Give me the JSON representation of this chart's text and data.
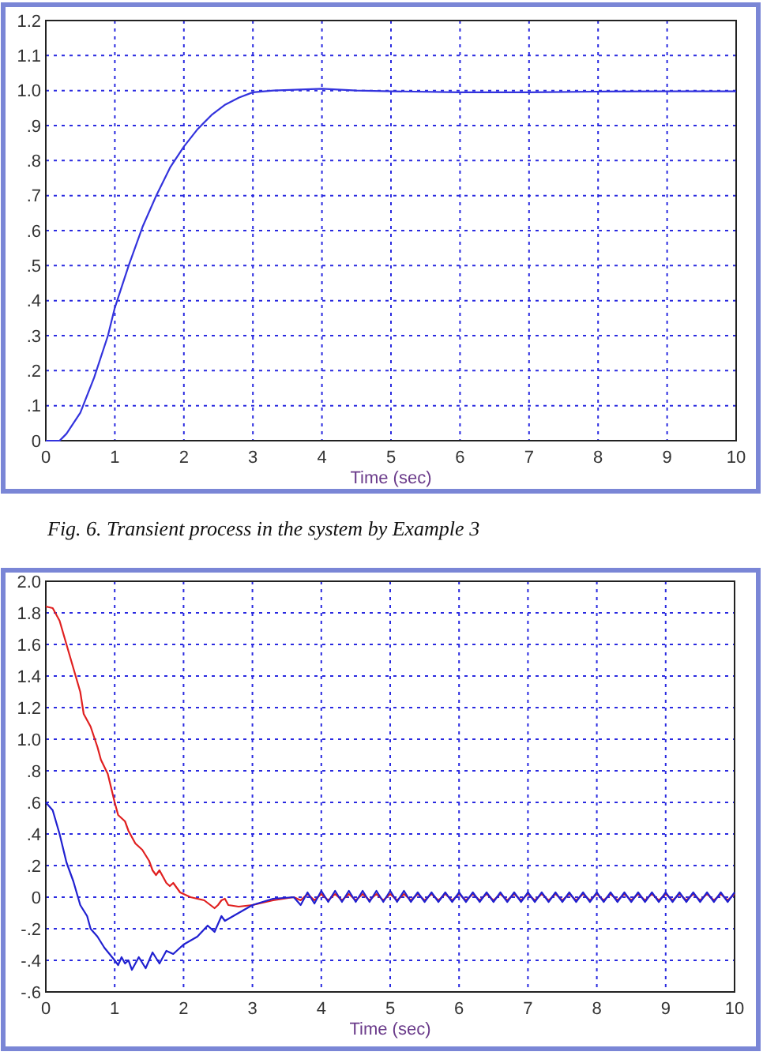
{
  "chart_data": [
    {
      "type": "line",
      "xlabel": "Time (sec)",
      "xlim": [
        0,
        10
      ],
      "xticks": [
        0,
        1,
        2,
        3,
        4,
        5,
        6,
        7,
        8,
        9,
        10
      ],
      "ylim": [
        0,
        1.2
      ],
      "yticks": [
        0,
        {
          "value": 0.1,
          "label": ".1"
        },
        {
          "value": 0.2,
          "label": ".2"
        },
        {
          "value": 0.3,
          "label": ".3"
        },
        {
          "value": 0.4,
          "label": ".4"
        },
        {
          "value": 0.5,
          "label": ".5"
        },
        {
          "value": 0.6,
          "label": ".6"
        },
        {
          "value": 0.7,
          "label": ".7"
        },
        {
          "value": 0.8,
          "label": ".8"
        },
        {
          "value": 0.9,
          "label": ".9"
        },
        {
          "value": 1,
          "label": "1.0"
        },
        1.1,
        1.2
      ],
      "grid": true,
      "line_style": "solid",
      "annotations": [
        "Fig. 6. Transient process in the system by Example 3"
      ],
      "series": [
        {
          "color": "#3333dd",
          "x": [
            0,
            0.2,
            0.3,
            0.5,
            0.7,
            0.9,
            1.0,
            1.2,
            1.4,
            1.6,
            1.8,
            2.0,
            2.2,
            2.4,
            2.6,
            2.8,
            3.0,
            3.3,
            4.0,
            4.5,
            5,
            6,
            7,
            8,
            9,
            10
          ],
          "values": [
            0,
            0,
            0.02,
            0.08,
            0.18,
            0.3,
            0.38,
            0.5,
            0.61,
            0.7,
            0.78,
            0.84,
            0.89,
            0.93,
            0.96,
            0.98,
            0.995,
            1.0,
            1.005,
            1.0,
            0.998,
            0.995,
            0.995,
            0.997,
            0.998,
            0.998
          ]
        }
      ]
    },
    {
      "type": "line",
      "xlabel": "Time (sec)",
      "xlim": [
        0,
        10
      ],
      "xticks": [
        0,
        1,
        2,
        3,
        4,
        5,
        6,
        7,
        8,
        9,
        10
      ],
      "ylim": [
        -0.6,
        2.0
      ],
      "yticks": [
        {
          "value": -0.6,
          "label": "-.6"
        },
        {
          "value": -0.4,
          "label": "-.4"
        },
        {
          "value": -0.2,
          "label": "-.2"
        },
        0,
        {
          "value": 0.2,
          "label": ".2"
        },
        {
          "value": 0.4,
          "label": ".4"
        },
        {
          "value": 0.6,
          "label": ".6"
        },
        {
          "value": 0.8,
          "label": ".8"
        },
        {
          "value": 1,
          "label": "1.0"
        },
        1.2,
        1.4,
        1.6,
        1.8,
        {
          "value": 2,
          "label": "2.0"
        }
      ],
      "grid": true,
      "line_style": "solid",
      "series": [
        {
          "color": "#e02020",
          "x": [
            0,
            0.1,
            0.2,
            0.3,
            0.4,
            0.5,
            0.55,
            0.65,
            0.75,
            0.8,
            0.9,
            1.0,
            1.05,
            1.15,
            1.2,
            1.3,
            1.4,
            1.5,
            1.55,
            1.6,
            1.65,
            1.75,
            1.8,
            1.85,
            1.95,
            2.1,
            2.3,
            2.45,
            2.5,
            2.55,
            2.6,
            2.65,
            2.8,
            3.0,
            3.3,
            3.6,
            3.7,
            3.8,
            3.9,
            4.0,
            4.1,
            4.2,
            4.3,
            4.4,
            4.5,
            4.6,
            4.7,
            4.8,
            4.9,
            5.0,
            5.1,
            5.2,
            5.3,
            5.4,
            5.5,
            5.6,
            5.7,
            5.8,
            5.9,
            6.0,
            6.1,
            6.2,
            6.3,
            6.4,
            6.5,
            6.6,
            6.7,
            6.8,
            6.9,
            7.0,
            7.1,
            7.2,
            7.3,
            7.4,
            7.5,
            7.6,
            7.7,
            7.8,
            7.9,
            8.0,
            8.1,
            8.2,
            8.3,
            8.4,
            8.5,
            8.6,
            8.7,
            8.8,
            8.9,
            9.0,
            9.1,
            9.2,
            9.3,
            9.4,
            9.5,
            9.6,
            9.7,
            9.8,
            9.9,
            10.0
          ],
          "values": [
            1.84,
            1.83,
            1.75,
            1.6,
            1.45,
            1.3,
            1.16,
            1.08,
            0.95,
            0.87,
            0.78,
            0.6,
            0.52,
            0.48,
            0.42,
            0.34,
            0.3,
            0.23,
            0.17,
            0.14,
            0.17,
            0.09,
            0.07,
            0.09,
            0.03,
            0,
            -0.02,
            -0.07,
            -0.05,
            -0.02,
            -0.01,
            -0.05,
            -0.06,
            -0.05,
            -0.02,
            0,
            -0.02,
            0.02,
            -0.02,
            0.02,
            -0.02,
            0.02,
            -0.02,
            0.02,
            -0.02,
            0.02,
            -0.02,
            0.02,
            -0.02,
            0.02,
            -0.02,
            0.02,
            -0.02,
            0.02,
            -0.02,
            0.02,
            -0.02,
            0.02,
            -0.02,
            0.02,
            -0.02,
            0.02,
            -0.02,
            0.02,
            -0.02,
            0.02,
            -0.02,
            0.02,
            -0.02,
            0.02,
            -0.02,
            0.02,
            -0.02,
            0.02,
            -0.02,
            0.02,
            -0.02,
            0.02,
            -0.02,
            0.02,
            -0.02,
            0.02,
            -0.02,
            0.02,
            -0.02,
            0.02,
            -0.02,
            0.02,
            -0.02,
            0.02,
            -0.02,
            0.02,
            -0.02,
            0.02,
            -0.02,
            0.02,
            -0.02,
            0.02,
            -0.02,
            0.02
          ]
        },
        {
          "color": "#2020d0",
          "x": [
            0,
            0.1,
            0.2,
            0.3,
            0.4,
            0.5,
            0.6,
            0.65,
            0.75,
            0.85,
            1.0,
            1.05,
            1.1,
            1.15,
            1.2,
            1.25,
            1.35,
            1.45,
            1.55,
            1.65,
            1.75,
            1.85,
            2.0,
            2.2,
            2.35,
            2.45,
            2.55,
            2.6,
            2.8,
            3.0,
            3.3,
            3.6,
            3.7,
            3.8,
            3.9,
            4.0,
            4.1,
            4.2,
            4.3,
            4.4,
            4.5,
            4.6,
            4.7,
            4.8,
            4.9,
            5.0,
            5.1,
            5.2,
            5.3,
            5.4,
            5.5,
            5.6,
            5.7,
            5.8,
            5.9,
            6.0,
            6.1,
            6.2,
            6.3,
            6.4,
            6.5,
            6.6,
            6.7,
            6.8,
            6.9,
            7.0,
            7.1,
            7.2,
            7.3,
            7.4,
            7.5,
            7.6,
            7.7,
            7.8,
            7.9,
            8.0,
            8.1,
            8.2,
            8.3,
            8.4,
            8.5,
            8.6,
            8.7,
            8.8,
            8.9,
            9.0,
            9.1,
            9.2,
            9.3,
            9.4,
            9.5,
            9.6,
            9.7,
            9.8,
            9.9,
            10.0
          ],
          "values": [
            0.6,
            0.55,
            0.4,
            0.22,
            0.1,
            -0.05,
            -0.12,
            -0.2,
            -0.25,
            -0.32,
            -0.4,
            -0.43,
            -0.38,
            -0.42,
            -0.4,
            -0.46,
            -0.38,
            -0.45,
            -0.35,
            -0.42,
            -0.34,
            -0.36,
            -0.3,
            -0.25,
            -0.18,
            -0.22,
            -0.12,
            -0.15,
            -0.1,
            -0.05,
            -0.01,
            0,
            -0.05,
            0.03,
            -0.04,
            0.04,
            -0.03,
            0.04,
            -0.03,
            0.04,
            -0.03,
            0.04,
            -0.03,
            0.04,
            -0.03,
            0.04,
            -0.03,
            0.04,
            -0.03,
            0.03,
            -0.03,
            0.03,
            -0.03,
            0.03,
            -0.03,
            0.03,
            -0.03,
            0.03,
            -0.03,
            0.03,
            -0.03,
            0.03,
            -0.03,
            0.03,
            -0.03,
            0.03,
            -0.03,
            0.03,
            -0.03,
            0.03,
            -0.03,
            0.03,
            -0.03,
            0.03,
            -0.03,
            0.03,
            -0.03,
            0.03,
            -0.03,
            0.03,
            -0.03,
            0.03,
            -0.03,
            0.03,
            -0.03,
            0.03,
            -0.03,
            0.03,
            -0.03,
            0.03,
            -0.03,
            0.03,
            -0.03,
            0.03,
            -0.03,
            0.03
          ]
        }
      ]
    }
  ]
}
